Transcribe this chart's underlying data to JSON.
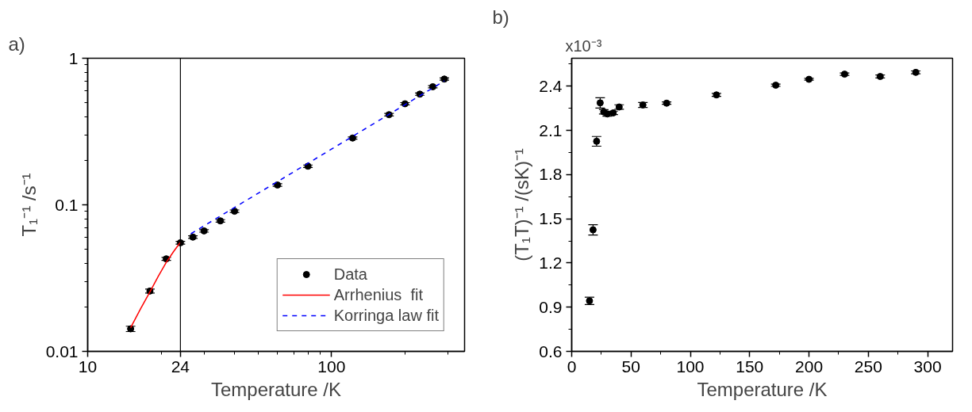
{
  "chart_data": [
    {
      "type": "scatter",
      "annotations": [
        "a)"
      ],
      "xlabel": "Temperature /K",
      "ylabel": "T₁⁻¹ /s⁻¹",
      "log": "xy",
      "xlim": [
        10,
        351
      ],
      "ylim": [
        0.01,
        1
      ],
      "xticks": [
        10,
        24,
        100
      ],
      "yticks": [
        0.01,
        0.1,
        1
      ],
      "grid": false,
      "legend": "bottom right",
      "ref_lines": [
        {
          "axis": "x",
          "value": 24,
          "color": "#000000"
        }
      ],
      "series": [
        {
          "name": "Data",
          "marker": "circle",
          "color": "#000000",
          "x": [
            15,
            18,
            21,
            24,
            27,
            30,
            35,
            40,
            60,
            80,
            122,
            172,
            200,
            230,
            260,
            290
          ],
          "values": [
            0.01425,
            0.0258,
            0.0428,
            0.0551,
            0.0602,
            0.0664,
            0.0777,
            0.0904,
            0.1365,
            0.1834,
            0.2855,
            0.412,
            0.489,
            0.569,
            0.639,
            0.721
          ],
          "errors": [
            0.0006,
            0.0008,
            0.001,
            0.0012,
            0.0012,
            0.0013,
            0.0015,
            0.0018,
            0.0027,
            0.0035,
            0.005,
            0.008,
            0.009,
            0.01,
            0.011,
            0.012
          ]
        },
        {
          "name": "Arrhenius  fit",
          "type": "line",
          "color": "#ff0000",
          "line_style": "solid",
          "x": [
            15,
            16.5,
            18,
            19.5,
            21,
            22.5,
            24
          ],
          "values": [
            0.0145,
            0.0196,
            0.0255,
            0.0327,
            0.0405,
            0.048,
            0.0555
          ]
        },
        {
          "name": "Korringa law fit",
          "type": "line",
          "color": "#0000ff",
          "line_style": "dashed",
          "x": [
            26.5,
            100,
            290
          ],
          "values": [
            0.0635,
            0.24,
            0.7
          ]
        }
      ]
    },
    {
      "type": "scatter",
      "annotations": [
        "b)",
        "x10⁻³"
      ],
      "xlabel": "Temperature /K",
      "ylabel": "(T₁T)⁻¹ /(sK)⁻¹",
      "xlim": [
        0,
        321
      ],
      "ylim": [
        0.6,
        2.59
      ],
      "xticks": [
        0,
        50,
        100,
        150,
        200,
        250,
        300
      ],
      "yticks": [
        0.6,
        0.9,
        1.2,
        1.5,
        1.8,
        2.1,
        2.4
      ],
      "grid": false,
      "legend": false,
      "marker": "circle",
      "series": [
        {
          "color": "#000000",
          "x": [
            15,
            18,
            21,
            24,
            27,
            30,
            35,
            40,
            60,
            80,
            122,
            172,
            200,
            230,
            260,
            290
          ],
          "values": [
            0.943,
            1.425,
            2.026,
            2.287,
            2.226,
            2.212,
            2.219,
            2.259,
            2.273,
            2.285,
            2.341,
            2.407,
            2.447,
            2.482,
            2.466,
            2.494
          ],
          "errors": [
            0.025,
            0.035,
            0.033,
            0.035,
            0.015,
            0.015,
            0.012,
            0.015,
            0.017,
            0.008,
            0.01,
            0.008,
            0.006,
            0.008,
            0.01,
            0.01
          ]
        }
      ]
    }
  ]
}
